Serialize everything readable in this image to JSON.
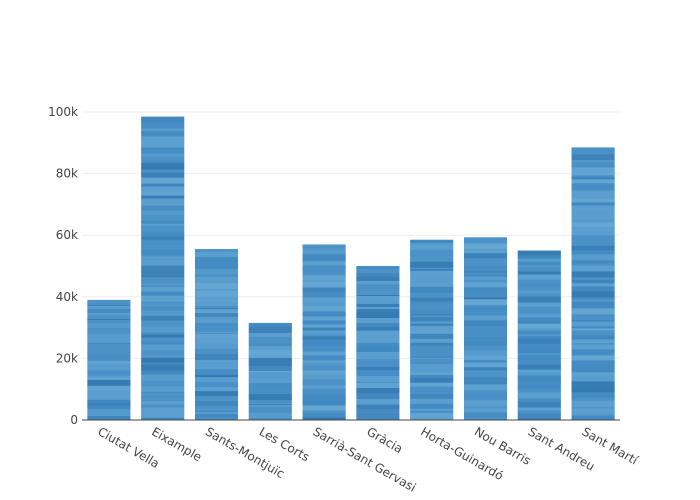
{
  "chart_data": {
    "type": "bar",
    "title": "",
    "xlabel": "",
    "ylabel": "",
    "categories": [
      "Ciutat Vella",
      "Eixample",
      "Sants-Montjuïc",
      "Les Corts",
      "Sarrià-Sant Gervasi",
      "Gràcia",
      "Horta-Guinardó",
      "Nou Barris",
      "Sant Andreu",
      "Sant Martí"
    ],
    "values": [
      39000,
      98500,
      55500,
      31500,
      57000,
      50000,
      58500,
      59300,
      55000,
      88500
    ],
    "ylim": [
      0,
      100000
    ],
    "yticks": [
      0,
      20000,
      40000,
      60000,
      80000,
      100000
    ],
    "ytick_labels": [
      "0",
      "20k",
      "40k",
      "60k",
      "80k",
      "100k"
    ],
    "grid": true,
    "bar_color": "#4f96c9",
    "stripe_colors": [
      "#3d86c0",
      "#5fa2d2",
      "#4a8fc6",
      "#6aaad6",
      "#2f74ad"
    ]
  }
}
